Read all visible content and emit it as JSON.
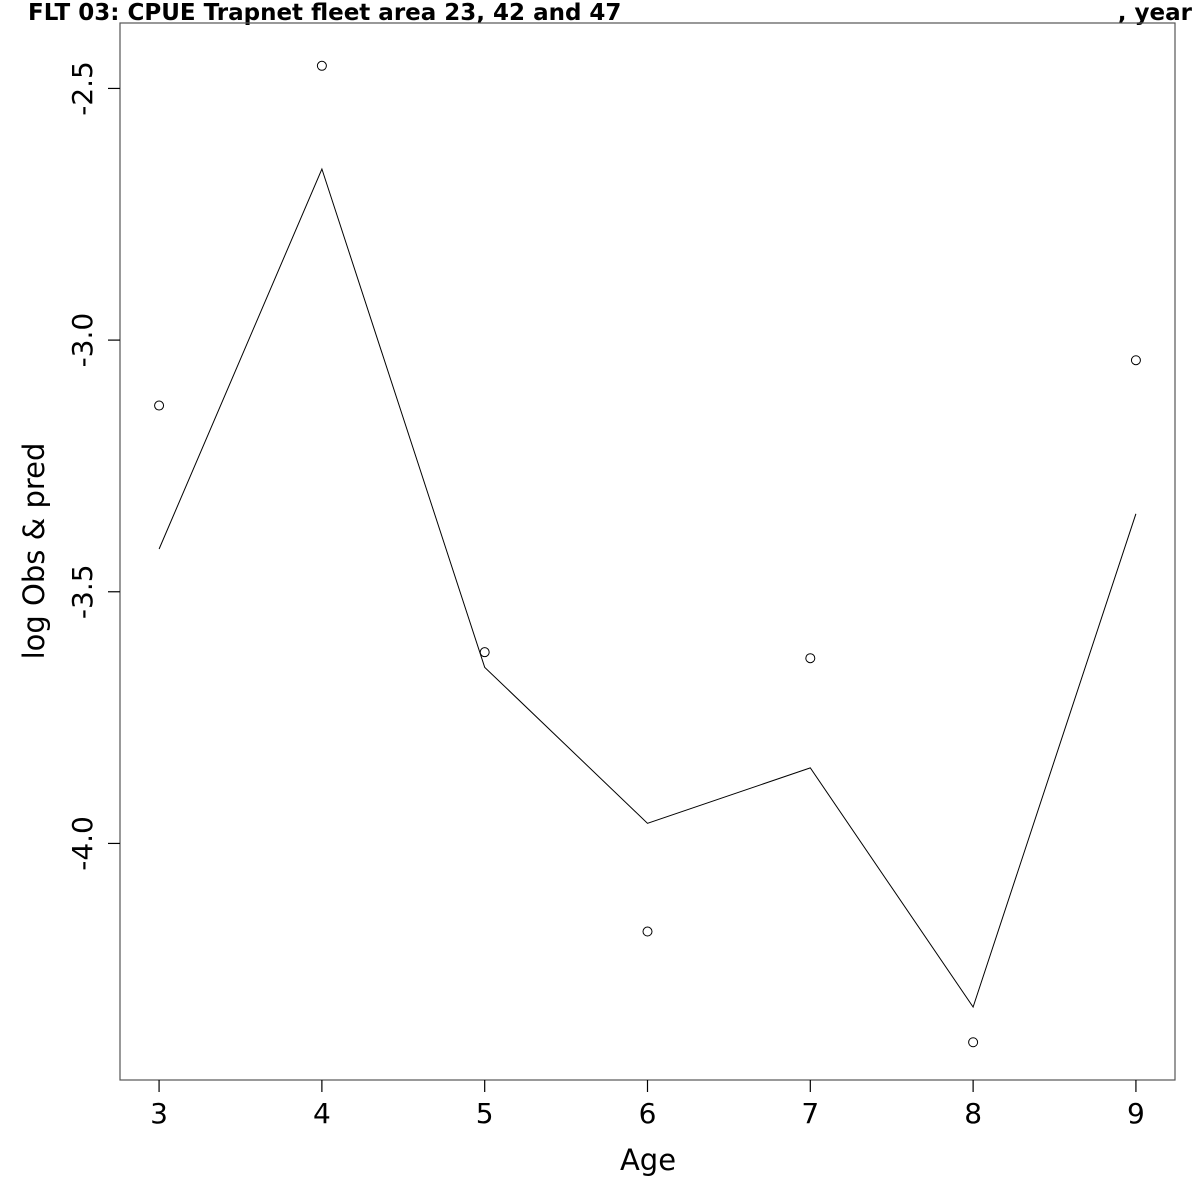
{
  "title": {
    "left": "FLT 03: CPUE Trapnet fleet area 23, 42 and 47",
    "right": ", year"
  },
  "chart_data": {
    "type": "line",
    "xlabel": "Age",
    "ylabel": "log Obs & pred",
    "xlim": [
      2.76,
      9.24
    ],
    "ylim": [
      -4.47,
      -2.37
    ],
    "x_ticks": [
      3,
      4,
      5,
      6,
      7,
      8,
      9
    ],
    "y_ticks": [
      -2.5,
      -3.0,
      -3.5,
      -4.0
    ],
    "y_tick_labels": [
      "-2.5",
      "-3.0",
      "-3.5",
      "-4.0"
    ],
    "grid": false,
    "legend": "none",
    "series": [
      {
        "kind": "points",
        "x": [
          3,
          4,
          5,
          6,
          7,
          8,
          9
        ],
        "values": [
          -3.13,
          -2.455,
          -3.62,
          -4.175,
          -3.632,
          -4.395,
          -3.04
        ]
      },
      {
        "kind": "line",
        "x": [
          3,
          4,
          5,
          6,
          7,
          8,
          9
        ],
        "values": [
          -3.415,
          -2.66,
          -3.65,
          -3.96,
          -3.85,
          -4.325,
          -3.345
        ]
      }
    ]
  }
}
